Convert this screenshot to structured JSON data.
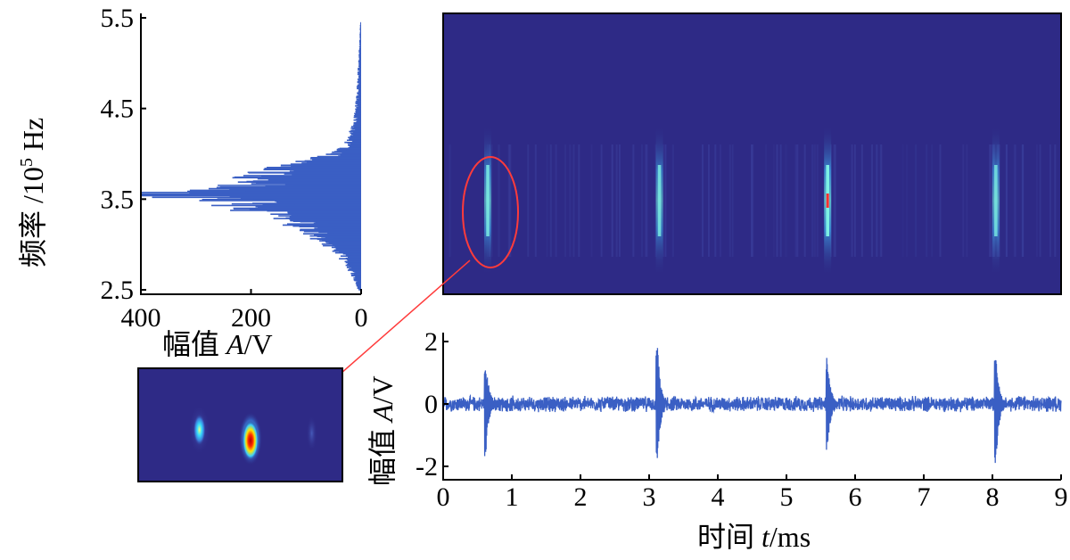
{
  "colors": {
    "signal": "#3a5fc4",
    "background": "#2e2a86",
    "marker": "#ff3b3b"
  },
  "chart_data": [
    {
      "type": "bar",
      "orientation": "horizontal",
      "ylabel": "频率 /10⁵ Hz",
      "ylabel_prefix": "频率 /10",
      "ylabel_exp": "5",
      "ylabel_unit": " Hz",
      "xlabel": "幅值 A/V",
      "xlabel_prefix": "幅值 ",
      "xlabel_var": "A",
      "xlabel_unit": "/V",
      "xlim": [
        400,
        0
      ],
      "ylim": [
        2.5,
        5.5
      ],
      "xticks": [
        "400",
        "200",
        "0"
      ],
      "yticks": [
        "5.5",
        "4.5",
        "3.5",
        "2.5"
      ],
      "profile": [
        {
          "f": 2.5,
          "a": 5
        },
        {
          "f": 2.6,
          "a": 12
        },
        {
          "f": 2.7,
          "a": 20
        },
        {
          "f": 2.8,
          "a": 30
        },
        {
          "f": 2.9,
          "a": 45
        },
        {
          "f": 3.0,
          "a": 65
        },
        {
          "f": 3.1,
          "a": 90
        },
        {
          "f": 3.2,
          "a": 120
        },
        {
          "f": 3.3,
          "a": 150
        },
        {
          "f": 3.4,
          "a": 230
        },
        {
          "f": 3.5,
          "a": 310
        },
        {
          "f": 3.55,
          "a": 400
        },
        {
          "f": 3.6,
          "a": 300
        },
        {
          "f": 3.7,
          "a": 230
        },
        {
          "f": 3.8,
          "a": 180
        },
        {
          "f": 3.9,
          "a": 120
        },
        {
          "f": 4.0,
          "a": 55
        },
        {
          "f": 4.1,
          "a": 30
        },
        {
          "f": 4.2,
          "a": 22
        },
        {
          "f": 4.3,
          "a": 16
        },
        {
          "f": 4.4,
          "a": 12
        },
        {
          "f": 4.5,
          "a": 10
        },
        {
          "f": 4.7,
          "a": 8
        },
        {
          "f": 4.9,
          "a": 6
        },
        {
          "f": 5.1,
          "a": 4
        },
        {
          "f": 5.4,
          "a": 2
        }
      ]
    },
    {
      "type": "heatmap",
      "title": "",
      "x_range_ms": [
        0,
        9
      ],
      "y_range_1e5Hz": [
        2.5,
        5.5
      ],
      "bursts": [
        {
          "t": 0.65,
          "f": 3.5,
          "intensity": 0.6
        },
        {
          "t": 3.15,
          "f": 3.5,
          "intensity": 0.55
        },
        {
          "t": 5.6,
          "f": 3.5,
          "intensity": 0.9
        },
        {
          "t": 8.05,
          "f": 3.5,
          "intensity": 0.5
        }
      ]
    },
    {
      "type": "line",
      "ylabel": "幅值 A/V",
      "ylabel_prefix": "幅值 ",
      "ylabel_var": "A",
      "ylabel_unit": "/V",
      "xlabel": "时间 t/ms",
      "xlabel_prefix": "时间 ",
      "xlabel_var": "t",
      "xlabel_unit": "/ms",
      "xlim": [
        0,
        9
      ],
      "ylim": [
        -2,
        2
      ],
      "xticks": [
        "0",
        "1",
        "2",
        "3",
        "4",
        "5",
        "6",
        "7",
        "8",
        "9"
      ],
      "yticks": [
        "2",
        "0",
        "-2"
      ],
      "noise_amplitude": 0.25,
      "spikes": [
        {
          "t": 0.62,
          "peak": 1.6,
          "trough": -1.8
        },
        {
          "t": 3.12,
          "peak": 2.0,
          "trough": -2.0
        },
        {
          "t": 5.6,
          "peak": 1.5,
          "trough": -1.5
        },
        {
          "t": 8.05,
          "peak": 1.9,
          "trough": -2.0
        }
      ]
    },
    {
      "type": "heatmap",
      "title": "",
      "blobs": [
        {
          "x_frac": 0.3,
          "intensity": 0.55
        },
        {
          "x_frac": 0.55,
          "intensity": 1.0
        },
        {
          "x_frac": 0.85,
          "intensity": 0.15
        }
      ]
    }
  ]
}
